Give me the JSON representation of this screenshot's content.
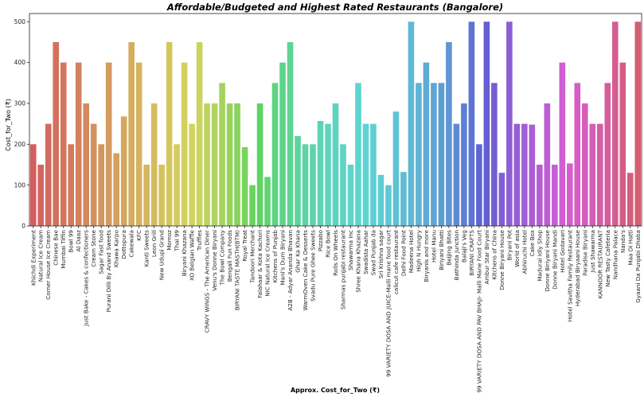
{
  "chart_data": {
    "type": "bar",
    "title": "Affordable/Budgeted and Highest Rated Restaurants (Bangalore)",
    "xlabel": "Approx. Cost_for_Two (₹)",
    "ylabel": "Cost_for_Two (₹)",
    "ylim": [
      0,
      520
    ],
    "yticks": [
      0,
      100,
      200,
      300,
      400,
      500
    ],
    "grid": false,
    "categories": [
      "Khichdi Experiment",
      "Natural Ice Cream",
      "Corner House Ice Cream",
      "Chinese Bae",
      "Mumbai Tiffin",
      "Bowl 99",
      "Al Daaz",
      "Just Bake - Cakes & confectioners",
      "Cream Stone",
      "Sagar Fast food",
      "Purani Dilli By Anand Sweets",
      "Khawa Karpo",
      "Dottopura",
      "Cakewala",
      "KFC",
      "Kanti Sweets",
      "Leon Grill",
      "New Udupi Grand",
      "Momoz",
      "Thai 99",
      "Biryani Khazana",
      "XO Belgian Waffle",
      "Truffles",
      "CRAVY WINGS - The American Diner",
      "Venu's Donne Biryani",
      "The Bowl Company",
      "Bengali Fun Foods",
      "BIRYANI TASTE MASTH(BTM)",
      "Royal Treat",
      "Tandoori Merchant",
      "Falahaar & Kota Kachori",
      "NIC Natural Ice Creams",
      "Kitchens of Punjab",
      "Mani's Dum Biryani",
      "A2B - Adyar Ananda Bhavan",
      "Ghar Ka Khana",
      "WarmOven Cake & Desserts",
      "Svadu Pure Ghee Sweets",
      "Pizzabo",
      "Rice Bowl",
      "Rolls On Wheels",
      "Sharmas punjabi restaurant",
      "Shawarma Inc",
      "Shree Khana Khazana",
      "Swadista Aahar",
      "Swad Punjab da",
      "Sri Krishna sagar",
      "99 VARIETY DOSA AND JUICE-Malli mane food court",
      "calicut cafe restaurant",
      "Delhi Food Point",
      "Madeena Hotel",
      "High N Hungry",
      "Biryanis and more",
      "Hotel Manu",
      "Biriyani Bhatti",
      "Beijing Bites",
      "Bathinda Junction",
      "Balaji's Veg",
      "BIRYANI CRAFTS",
      "99 VARIETY DOSA AND PAV BHAJI- Malli Mane Food Court",
      "Ambur Star Biryani",
      "Kitchens of China",
      "Donne Biryani House",
      "Biryani Pot",
      "World of asia",
      "Abhiruchi Hotel",
      "Cake Box",
      "Madurai Idly Shop",
      "Donne Biriyani House",
      "Donne Biryani Mandi",
      "Hotel Godavari",
      "Hotel Savitha Family Restaurant",
      "Hyderabad Biryaani House",
      "Paradise Biryani",
      "Just Shawarma",
      "KANNOOR RESTAURANT",
      "New Tasty Cafeteria",
      "Nandhana Palace",
      "Nanda's",
      "Maa Di Hatti",
      "Gyaani Da Punjabi Dhaba"
    ],
    "values": [
      200,
      150,
      250,
      450,
      400,
      200,
      400,
      300,
      250,
      200,
      400,
      178,
      268,
      450,
      400,
      150,
      300,
      150,
      450,
      200,
      400,
      250,
      450,
      300,
      300,
      350,
      300,
      300,
      193,
      100,
      300,
      120,
      350,
      400,
      450,
      220,
      200,
      200,
      257,
      250,
      300,
      200,
      150,
      350,
      250,
      250,
      125,
      100,
      280,
      132,
      500,
      350,
      400,
      350,
      350,
      450,
      250,
      300,
      500,
      200,
      500,
      350,
      130,
      500,
      250,
      250,
      248,
      150,
      300,
      150,
      400,
      153,
      350,
      300,
      250,
      250,
      350,
      500,
      400,
      130,
      500
    ]
  }
}
